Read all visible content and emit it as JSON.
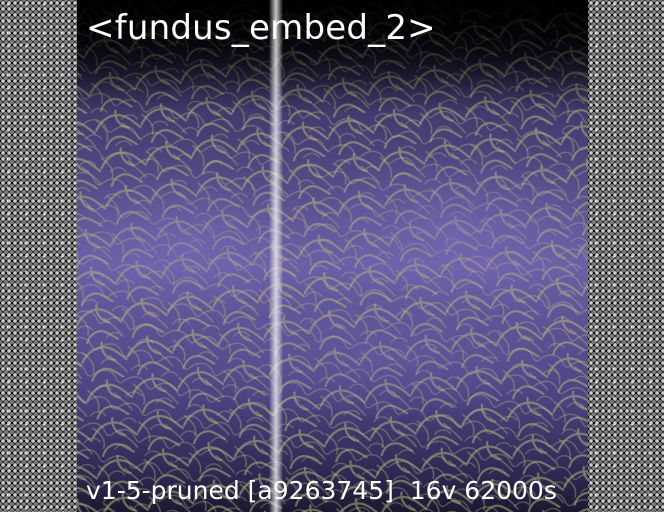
{
  "title": "<fundus_embed_2>",
  "caption": "v1-5-pruned [a9263745]  16v 62000s",
  "colors": {
    "background": "#000000",
    "tissue": "#6e63a8",
    "vessel": "#a8a878",
    "divider": "#d8d8d8",
    "text": "#ffffff"
  }
}
